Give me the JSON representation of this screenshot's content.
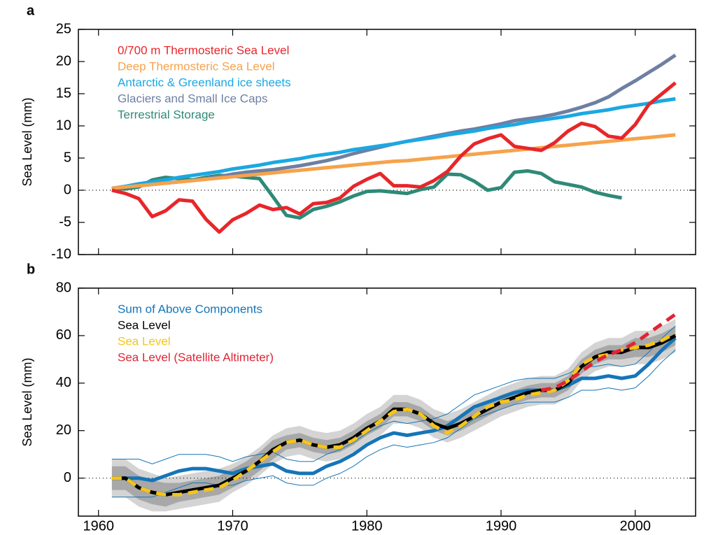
{
  "chart_data": [
    {
      "type": "line",
      "panel_label": "a",
      "y_label": "Sea Level (mm)",
      "x": [
        1961,
        1962,
        1963,
        1964,
        1965,
        1966,
        1967,
        1968,
        1969,
        1970,
        1971,
        1972,
        1973,
        1974,
        1975,
        1976,
        1977,
        1978,
        1979,
        1980,
        1981,
        1982,
        1983,
        1984,
        1985,
        1986,
        1987,
        1988,
        1989,
        1990,
        1991,
        1992,
        1993,
        1994,
        1995,
        1996,
        1997,
        1998,
        1999,
        2000,
        2001,
        2002,
        2003
      ],
      "xlim": [
        1958.5,
        2004.5
      ],
      "xticks": [
        1960,
        1970,
        1980,
        1990,
        2000
      ],
      "ylim": [
        -10,
        25
      ],
      "yticks": [
        -10,
        -5,
        0,
        5,
        10,
        15,
        20,
        25
      ],
      "reference_line": 0,
      "series": [
        {
          "name": "0/700 m Thermosteric Sea Level",
          "color": "#e8262a",
          "values": [
            0,
            -0.5,
            -1.3,
            -4.1,
            -3.2,
            -1.5,
            -1.7,
            -4.5,
            -6.5,
            -4.6,
            -3.6,
            -2.3,
            -3.0,
            -2.7,
            -3.7,
            -2.1,
            -1.9,
            -1.2,
            0.6,
            1.7,
            2.6,
            0.7,
            0.7,
            0.5,
            1.5,
            2.9,
            5.3,
            7.2,
            8.0,
            8.6,
            6.8,
            6.5,
            6.2,
            7.4,
            9.2,
            10.4,
            9.9,
            8.4,
            8.1,
            10.2,
            13.3,
            15.0,
            16.7
          ]
        },
        {
          "name": "Deep Thermosteric Sea Level",
          "color": "#f5a34c",
          "values": [
            0.3,
            0.5,
            0.7,
            0.9,
            1.1,
            1.3,
            1.5,
            1.7,
            1.9,
            2.1,
            2.3,
            2.5,
            2.7,
            2.9,
            3.1,
            3.3,
            3.5,
            3.7,
            3.9,
            4.1,
            4.3,
            4.5,
            4.6,
            4.8,
            5.0,
            5.2,
            5.4,
            5.6,
            5.8,
            6.0,
            6.2,
            6.4,
            6.6,
            6.8,
            7.0,
            7.2,
            7.4,
            7.6,
            7.8,
            8.0,
            8.2,
            8.4,
            8.6
          ]
        },
        {
          "name": "Antarctic & Greenland ice sheets",
          "color": "#1ba8e2",
          "values": [
            0.3,
            0.6,
            1.0,
            1.3,
            1.6,
            2.0,
            2.3,
            2.6,
            2.9,
            3.3,
            3.6,
            3.9,
            4.3,
            4.6,
            4.9,
            5.3,
            5.6,
            5.9,
            6.3,
            6.6,
            6.9,
            7.2,
            7.6,
            7.9,
            8.2,
            8.6,
            8.9,
            9.2,
            9.6,
            9.9,
            10.2,
            10.6,
            10.9,
            11.2,
            11.5,
            11.9,
            12.2,
            12.5,
            12.9,
            13.2,
            13.5,
            13.9,
            14.2
          ]
        },
        {
          "name": "Glaciers and Small Ice Caps",
          "color": "#6e7fa3",
          "values": [
            0.3,
            0.5,
            0.7,
            0.9,
            1.1,
            1.3,
            1.5,
            1.8,
            2.1,
            2.5,
            2.8,
            3.0,
            3.2,
            3.5,
            3.8,
            4.2,
            4.6,
            5.1,
            5.7,
            6.2,
            6.7,
            7.2,
            7.6,
            8.0,
            8.4,
            8.8,
            9.2,
            9.5,
            9.9,
            10.3,
            10.8,
            11.1,
            11.4,
            11.8,
            12.3,
            12.9,
            13.6,
            14.5,
            15.8,
            17.0,
            18.3,
            19.6,
            21.0
          ]
        },
        {
          "name": "Terrestrial Storage",
          "color": "#2e8a78",
          "values": [
            0.3,
            0.2,
            0.5,
            1.6,
            2.0,
            1.8,
            1.6,
            2.0,
            2.3,
            2.2,
            2.0,
            1.8,
            -1.0,
            -3.9,
            -4.3,
            -3.0,
            -2.5,
            -1.8,
            -0.9,
            -0.2,
            -0.1,
            -0.3,
            -0.5,
            0.1,
            0.5,
            2.5,
            2.4,
            1.4,
            0.0,
            0.4,
            2.8,
            3.0,
            2.6,
            1.3,
            0.9,
            0.5,
            -0.3,
            -0.8,
            -1.2,
            null,
            null,
            null,
            null
          ]
        }
      ]
    },
    {
      "type": "line",
      "panel_label": "b",
      "y_label": "Sea Level  (mm)",
      "x": [
        1961,
        1962,
        1963,
        1964,
        1965,
        1966,
        1967,
        1968,
        1969,
        1970,
        1971,
        1972,
        1973,
        1974,
        1975,
        1976,
        1977,
        1978,
        1979,
        1980,
        1981,
        1982,
        1983,
        1984,
        1985,
        1986,
        1987,
        1988,
        1989,
        1990,
        1991,
        1992,
        1993,
        1994,
        1995,
        1996,
        1997,
        1998,
        1999,
        2000,
        2001,
        2002,
        2003
      ],
      "xlim": [
        1958.5,
        2004.5
      ],
      "xticks": [
        1960,
        1970,
        1980,
        1990,
        2000
      ],
      "ylim": [
        -16,
        80
      ],
      "yticks": [
        0,
        20,
        40,
        60,
        80
      ],
      "reference_line": 0,
      "series": [
        {
          "name": "Sum of Above Components",
          "color": "#1575b8",
          "band_style": "thin-lines",
          "values": [
            0,
            0,
            0,
            -1,
            1,
            3,
            4,
            4,
            3,
            2,
            4,
            5,
            6,
            3,
            2,
            2,
            5,
            7,
            10,
            14,
            17,
            19,
            18,
            19,
            20,
            22,
            26,
            30,
            32,
            34,
            36,
            37,
            37,
            37,
            39,
            42,
            42,
            43,
            42,
            43,
            48,
            54,
            59
          ],
          "error": [
            8,
            8,
            8,
            7,
            7,
            7,
            6,
            6,
            6,
            5,
            5,
            5,
            5,
            5,
            5,
            5,
            5,
            5,
            5,
            5,
            5,
            5,
            5,
            5,
            5,
            5,
            5,
            5,
            5,
            5,
            5,
            5,
            5,
            5,
            5,
            5,
            5,
            5,
            5,
            5,
            5,
            5,
            5
          ]
        },
        {
          "name": "Sea Level",
          "color": "#000000",
          "band_style": "gray",
          "values": [
            0,
            0,
            -4,
            -6,
            -7,
            -6,
            -5,
            -4,
            -3,
            0,
            3,
            7,
            12,
            15,
            16,
            14,
            13,
            14,
            17,
            21,
            24,
            29,
            29,
            27,
            23,
            21,
            23,
            26,
            29,
            32,
            34,
            36,
            37,
            37,
            40,
            47,
            51,
            53,
            53,
            55,
            55,
            57,
            60
          ],
          "error": [
            5,
            5,
            5,
            5,
            5,
            4,
            4,
            4,
            4,
            4,
            4,
            4,
            4,
            3,
            3,
            3,
            3,
            3,
            3,
            3,
            3,
            3,
            3,
            3,
            3,
            3,
            3,
            3,
            3,
            3,
            3,
            3,
            3,
            3,
            3,
            3,
            3,
            3,
            3,
            4,
            4,
            4,
            4
          ],
          "error_outer": [
            8,
            8,
            8,
            8,
            7,
            7,
            7,
            7,
            7,
            6,
            6,
            6,
            6,
            6,
            6,
            6,
            6,
            6,
            6,
            6,
            6,
            6,
            6,
            6,
            6,
            6,
            6,
            6,
            6,
            6,
            6,
            6,
            6,
            6,
            6,
            6,
            6,
            6,
            6,
            7,
            7,
            7,
            7
          ]
        },
        {
          "name": "Sea Level",
          "color": "#f5c518",
          "dash": true,
          "values": [
            0,
            0,
            -4,
            -6,
            -7,
            -7,
            -6,
            -5,
            -4,
            -1,
            3,
            7,
            11,
            15,
            16,
            14,
            13,
            13,
            16,
            20,
            24,
            28,
            29,
            27,
            22,
            19,
            22,
            26,
            30,
            32,
            33,
            35,
            36,
            37,
            41,
            48,
            51,
            52,
            54,
            55,
            56,
            58,
            61
          ]
        },
        {
          "name": "Sea Level (Satellite Altimeter)",
          "color": "#e02535",
          "dash": true,
          "values": [
            null,
            null,
            null,
            null,
            null,
            null,
            null,
            null,
            null,
            null,
            null,
            null,
            null,
            null,
            null,
            null,
            null,
            null,
            null,
            null,
            null,
            null,
            null,
            null,
            null,
            null,
            null,
            null,
            null,
            null,
            null,
            null,
            37,
            38,
            41,
            45,
            49,
            52,
            54,
            57,
            61,
            65,
            69
          ]
        }
      ]
    }
  ]
}
